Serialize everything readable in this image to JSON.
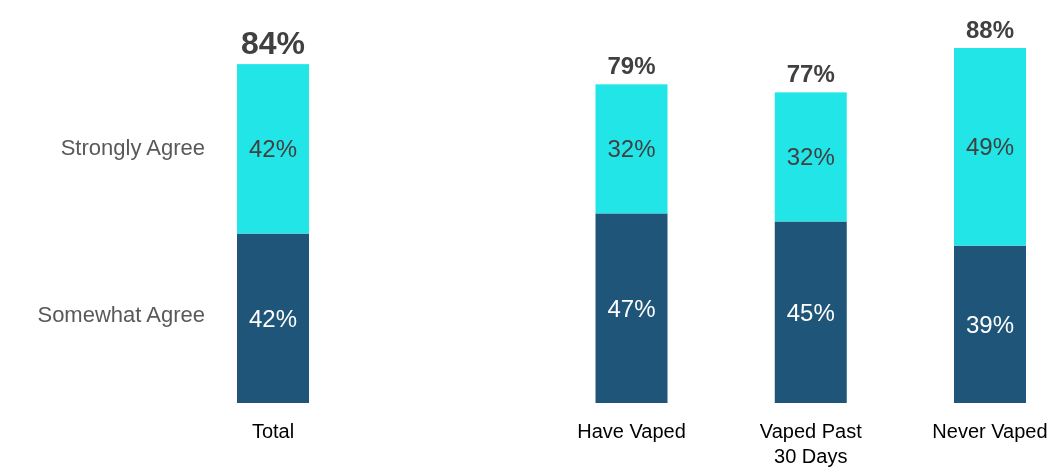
{
  "chart_data": {
    "type": "bar",
    "stacked": true,
    "categories": [
      "Total",
      null,
      "Have Vaped",
      "Vaped Past 30 Days",
      "Never Vaped"
    ],
    "series": [
      {
        "name": "Somewhat Agree",
        "color": "#1f5578",
        "values": [
          42,
          null,
          47,
          45,
          39
        ],
        "value_labels": [
          "42%",
          null,
          "47%",
          "45%",
          "39%"
        ]
      },
      {
        "name": "Strongly Agree",
        "color": "#22e5e8",
        "values": [
          42,
          null,
          32,
          32,
          49
        ],
        "value_labels": [
          "42%",
          null,
          "32%",
          "32%",
          "49%"
        ]
      }
    ],
    "totals": [
      "84%",
      null,
      "79%",
      "77%",
      "88%"
    ],
    "legend": "left"
  }
}
